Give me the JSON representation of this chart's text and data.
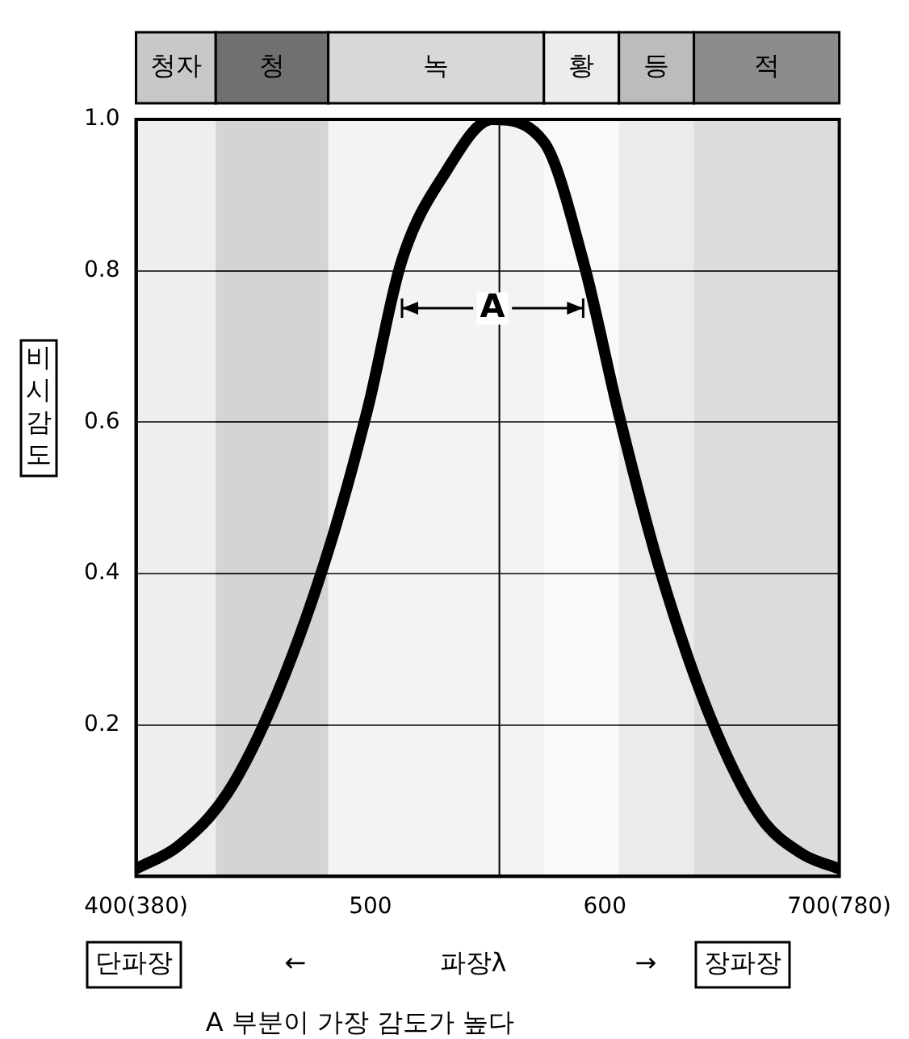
{
  "chart_data": {
    "type": "line",
    "xlabel": "파장λ",
    "ylabel": "비시감도",
    "xlim": [
      400,
      700
    ],
    "xticks": [
      {
        "value": 400,
        "label": "400(380)"
      },
      500,
      600,
      {
        "value": 700,
        "label": "700(780)"
      }
    ],
    "ylim": [
      0,
      1
    ],
    "yticks": [
      0.2,
      0.4,
      0.6,
      0.8,
      {
        "value": 1,
        "label": "1.0"
      }
    ],
    "grid": "y",
    "legend": false,
    "series": [
      {
        "color": "#000000",
        "x": [
          400,
          418,
          439,
          460,
          482,
          499,
          513,
          532,
          552,
          574,
          591,
          606,
          623,
          645,
          666,
          684,
          700
        ],
        "values": [
          0.01,
          0.04,
          0.11,
          0.24,
          0.43,
          0.62,
          0.81,
          0.93,
          1.0,
          0.97,
          0.81,
          0.61,
          0.41,
          0.21,
          0.08,
          0.03,
          0.01
        ]
      }
    ],
    "ref_lines": [
      {
        "axis": "x",
        "value": 555,
        "color": "#000000"
      }
    ],
    "bands": [
      {
        "axis": "x",
        "from": 400,
        "to": 434,
        "label": "청자",
        "color": "#c8c8c8"
      },
      {
        "axis": "x",
        "from": 434,
        "to": 482,
        "label": "청",
        "color": "#707070"
      },
      {
        "axis": "x",
        "from": 482,
        "to": 574,
        "label": "녹",
        "color": "#d8d8d8"
      },
      {
        "axis": "x",
        "from": 574,
        "to": 606,
        "label": "황",
        "color": "#ececec"
      },
      {
        "axis": "x",
        "from": 606,
        "to": 638,
        "label": "등",
        "color": "#bcbcbc"
      },
      {
        "axis": "x",
        "from": 638,
        "to": 700,
        "label": "적",
        "color": "#8c8c8c"
      }
    ],
    "annotations": [
      {
        "text": "A",
        "x": 552,
        "y": 0.75
      },
      "단파장",
      "←",
      "→",
      "장파장",
      "A 부분이 가장 감도가 높다"
    ]
  }
}
